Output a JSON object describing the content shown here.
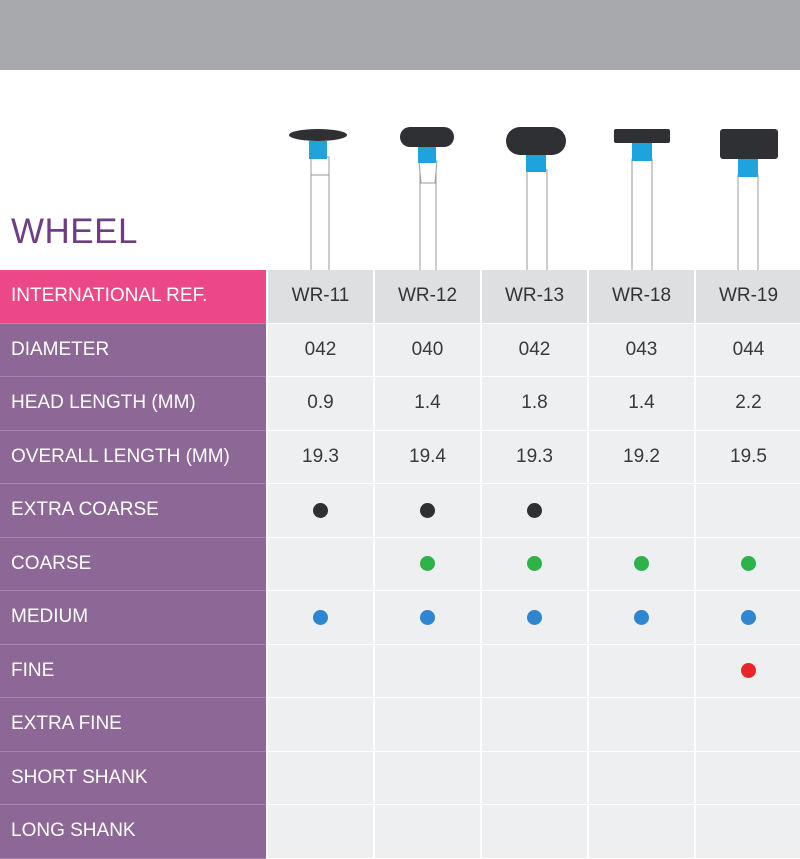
{
  "header": {
    "title": "WHEEL"
  },
  "colors": {
    "extra_coarse": "#2f3033",
    "coarse": "#2db34a",
    "medium": "#2e86d0",
    "fine": "#e8262a",
    "label_bg": "#8d6796",
    "ref_bg": "#ec4786"
  },
  "table": {
    "columns": [
      "WR-11",
      "WR-12",
      "WR-13",
      "WR-18",
      "WR-19"
    ],
    "rows": [
      {
        "label": "INTERNATIONAL REF.",
        "type": "ref"
      },
      {
        "label": "DIAMETER",
        "type": "text",
        "values": [
          "042",
          "040",
          "042",
          "043",
          "044"
        ]
      },
      {
        "label": "HEAD LENGTH (MM)",
        "type": "text",
        "values": [
          "0.9",
          "1.4",
          "1.8",
          "1.4",
          "2.2"
        ]
      },
      {
        "label": "OVERALL LENGTH (MM)",
        "type": "text",
        "values": [
          "19.3",
          "19.4",
          "19.3",
          "19.2",
          "19.5"
        ]
      },
      {
        "label": "EXTRA COARSE",
        "type": "dots",
        "grit": "extra_coarse",
        "values": [
          true,
          true,
          true,
          false,
          false
        ]
      },
      {
        "label": "COARSE",
        "type": "dots",
        "grit": "coarse",
        "values": [
          false,
          true,
          true,
          true,
          true
        ]
      },
      {
        "label": "MEDIUM",
        "type": "dots",
        "grit": "medium",
        "values": [
          true,
          true,
          true,
          true,
          true
        ]
      },
      {
        "label": "FINE",
        "type": "dots",
        "grit": "fine",
        "values": [
          false,
          false,
          false,
          false,
          true
        ]
      },
      {
        "label": "EXTRA FINE",
        "type": "dots",
        "grit": "extra_fine",
        "values": [
          false,
          false,
          false,
          false,
          false
        ]
      },
      {
        "label": "SHORT SHANK",
        "type": "dots",
        "grit": "short_shank",
        "values": [
          false,
          false,
          false,
          false,
          false
        ]
      },
      {
        "label": "LONG SHANK",
        "type": "dots",
        "grit": "long_shank",
        "values": [
          false,
          false,
          false,
          false,
          false
        ]
      }
    ]
  }
}
